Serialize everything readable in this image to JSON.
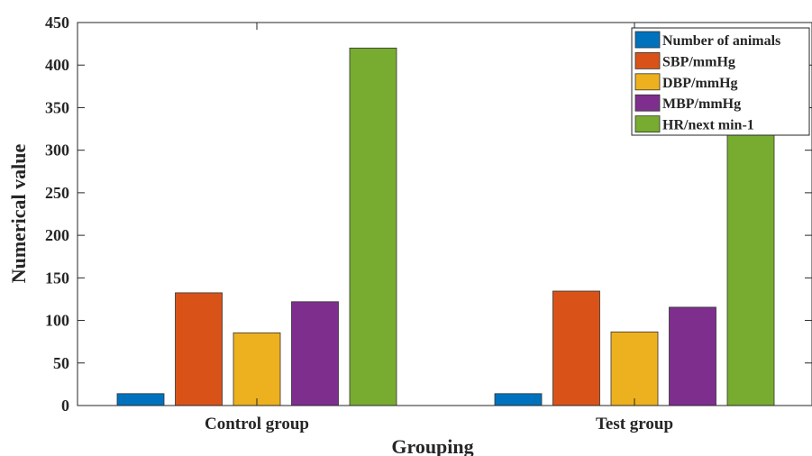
{
  "chart_data": {
    "type": "bar",
    "title": "",
    "xlabel": "Grouping",
    "ylabel": "Numerical value",
    "categories": [
      "Control group",
      "Test group"
    ],
    "ylim": [
      0,
      450
    ],
    "yticks": [
      "0",
      "50",
      "100",
      "150",
      "200",
      "250",
      "300",
      "350",
      "400",
      "450"
    ],
    "grid": false,
    "legend_position": "top-right",
    "series": [
      {
        "name": "Number of animals",
        "values": [
          14,
          14
        ],
        "color": "#0072BD"
      },
      {
        "name": "SBP/mmHg",
        "values": [
          132.5,
          134.5
        ],
        "color": "#D95319"
      },
      {
        "name": "DBP/mmHg",
        "values": [
          85.5,
          86.5
        ],
        "color": "#EDB120"
      },
      {
        "name": "MBP/mmHg",
        "values": [
          122,
          115.5
        ],
        "color": "#7E2F8E"
      },
      {
        "name": "HR/next min-1",
        "values": [
          420,
          330
        ],
        "color": "#77AC30"
      }
    ]
  }
}
